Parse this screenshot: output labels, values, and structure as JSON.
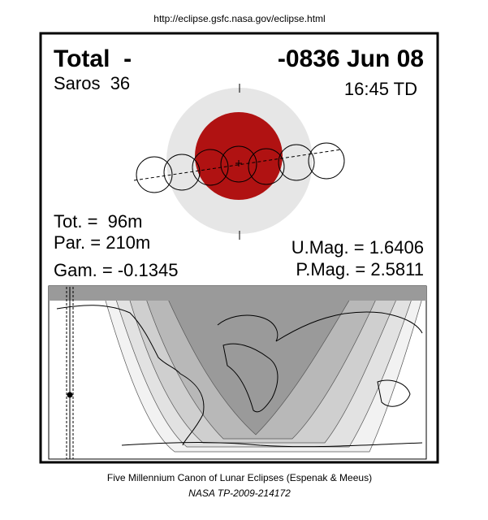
{
  "url": "http://eclipse.gsfc.nasa.gov/eclipse.html",
  "header": {
    "type": "Total  -",
    "date": "-0836 Jun 08",
    "saros": "Saros  36",
    "time": "16:45 TD"
  },
  "stats": {
    "tot": "Tot. =  96m",
    "par": "Par. = 210m",
    "gam": "Gam. = -0.1345",
    "umag": "U.Mag. = 1.6406",
    "pmag": "P.Mag. = 2.5811"
  },
  "footer": {
    "title": "Five Millennium Canon of Lunar Eclipses (Espenak & Meeus)",
    "ref": "NASA TP-2009-214172"
  }
}
